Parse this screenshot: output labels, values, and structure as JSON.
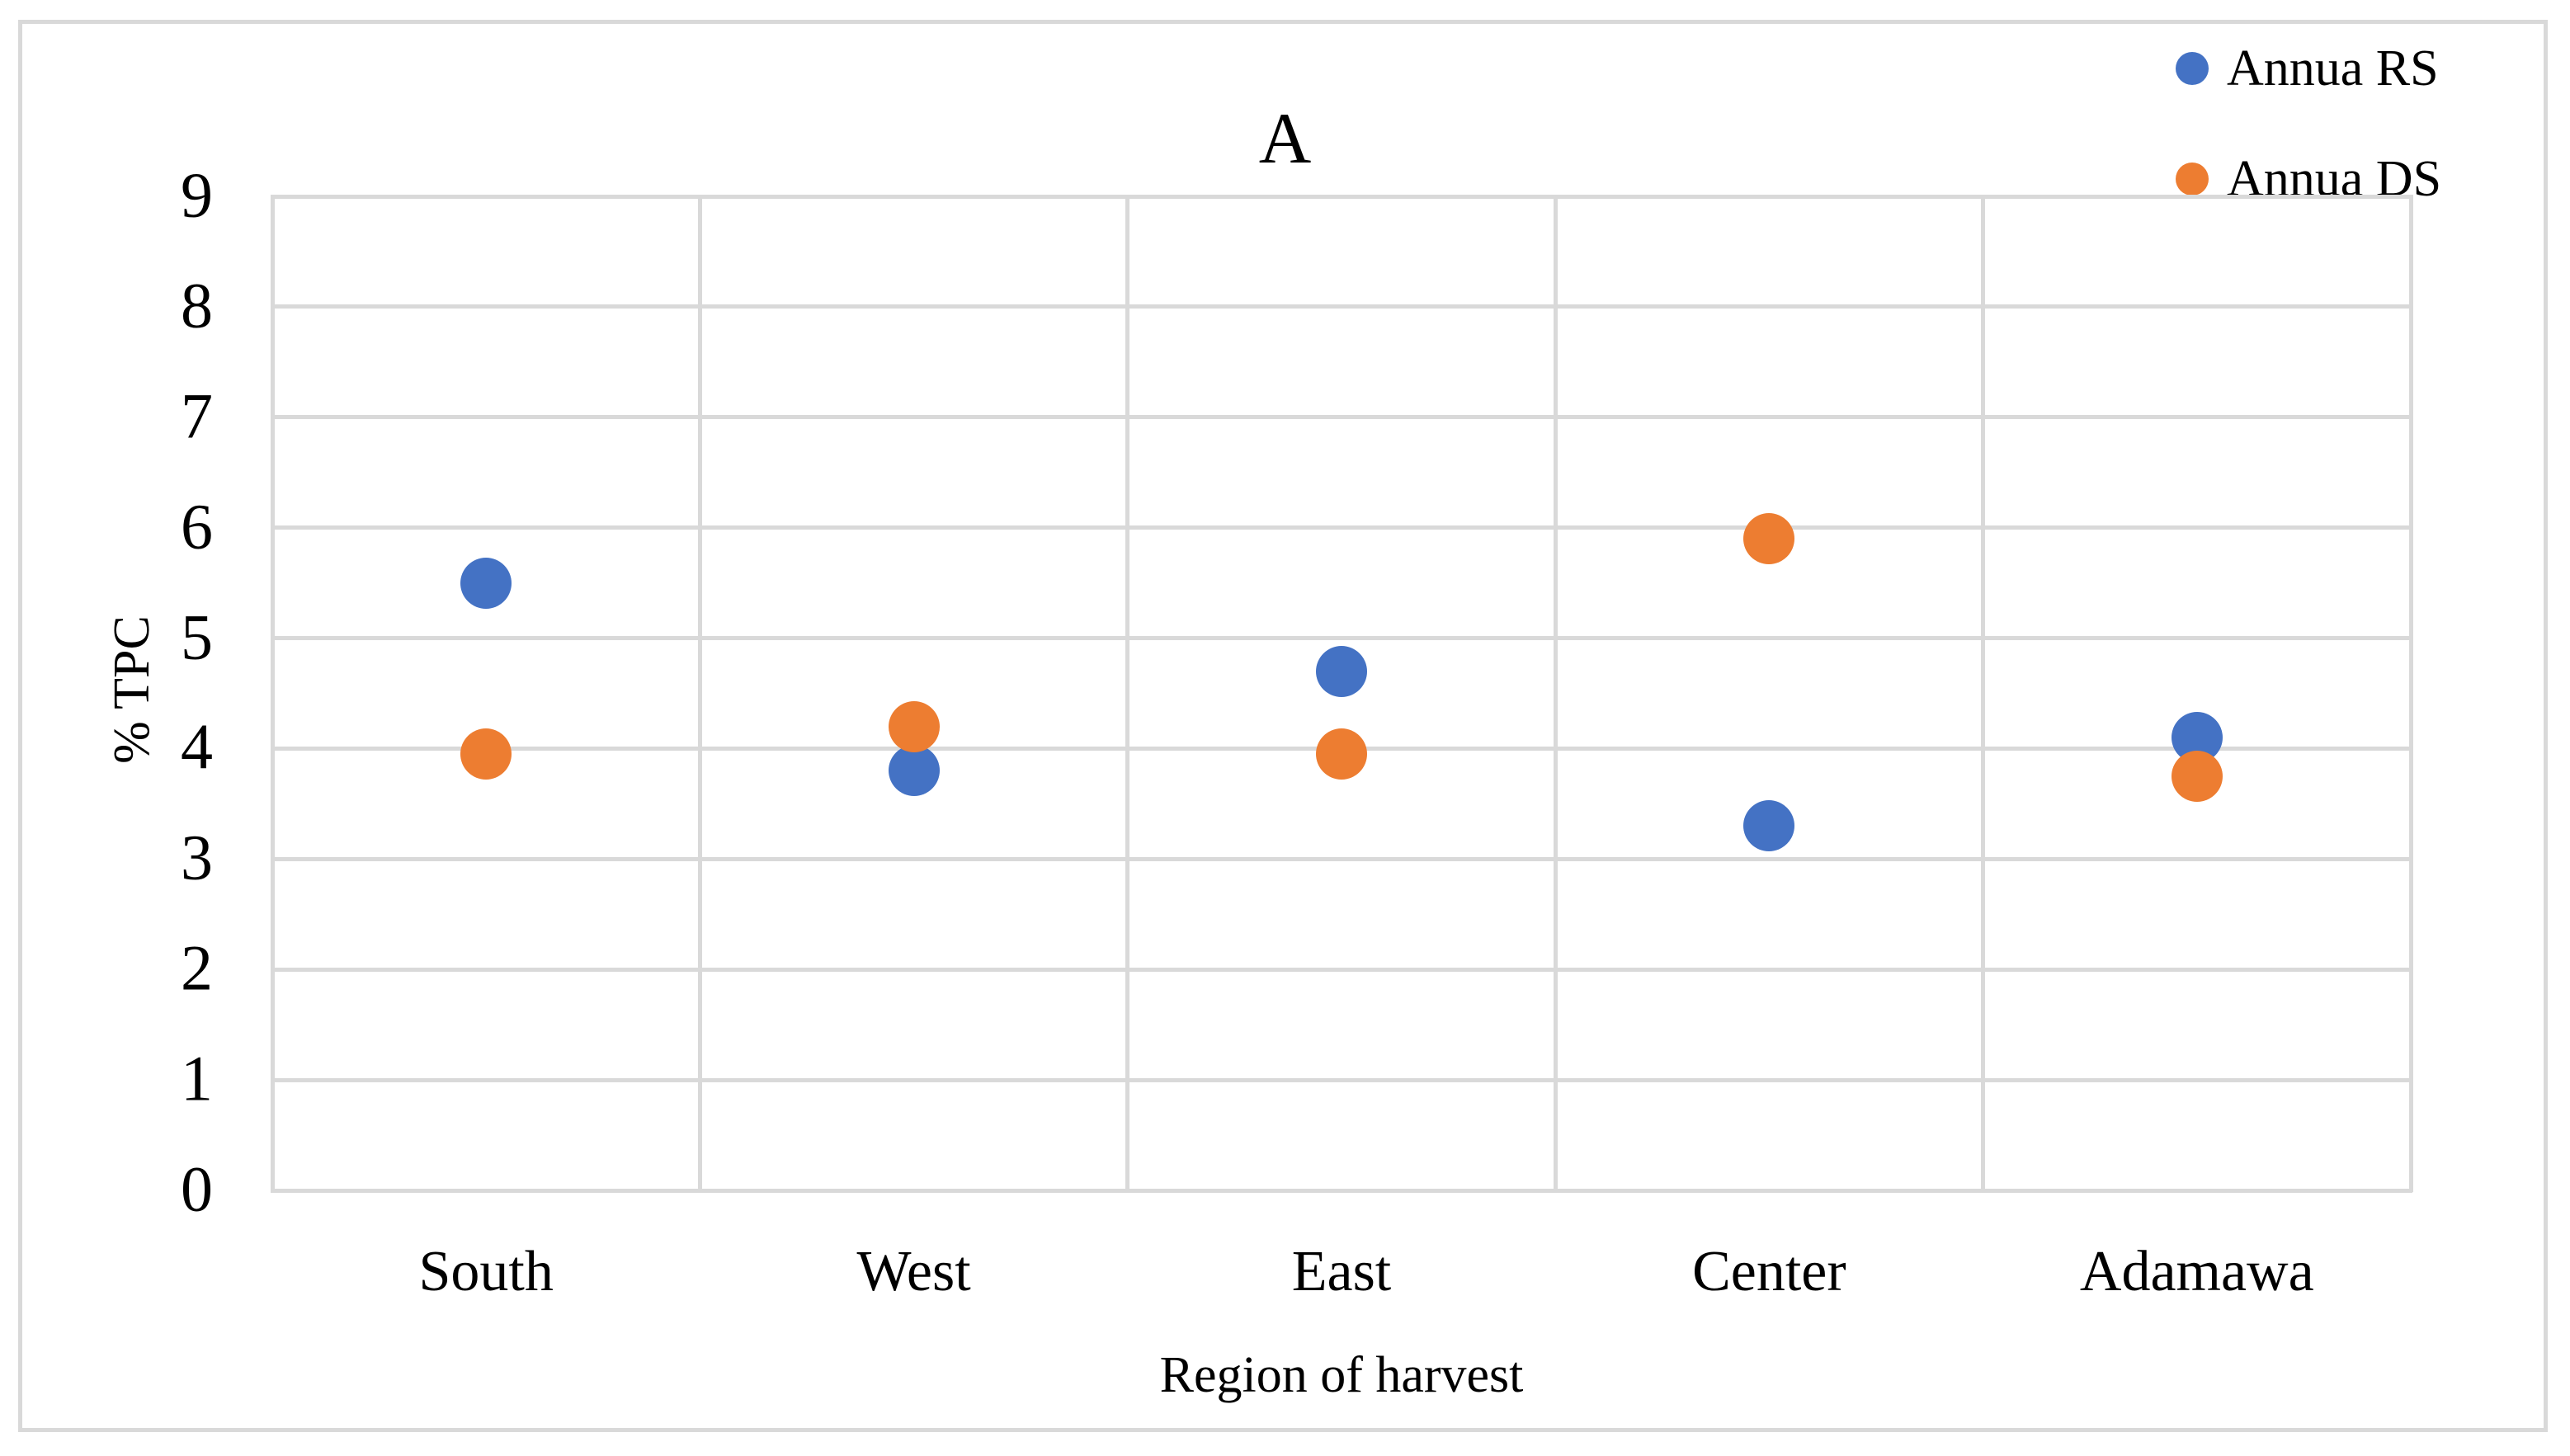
{
  "chart_data": {
    "type": "scatter",
    "title": "A",
    "xlabel": "Region of harvest",
    "ylabel": "% TPC",
    "categories": [
      "South",
      "West",
      "East",
      "Center",
      "Adamawa"
    ],
    "series": [
      {
        "name": "Annua RS",
        "color": "#4472C4",
        "values": [
          5.5,
          3.8,
          4.7,
          3.3,
          4.1
        ]
      },
      {
        "name": "Annua DS",
        "color": "#ED7D31",
        "values": [
          3.95,
          4.2,
          3.95,
          5.9,
          3.75
        ]
      }
    ],
    "ylim": [
      0,
      9
    ],
    "yticks": [
      0,
      1,
      2,
      3,
      4,
      5,
      6,
      7,
      8,
      9
    ],
    "grid": true,
    "gridline_color": "#D9D9D9",
    "frame_color": "#D9D9D9",
    "legend_position": "top-right",
    "marker_diameter_px": 62
  }
}
